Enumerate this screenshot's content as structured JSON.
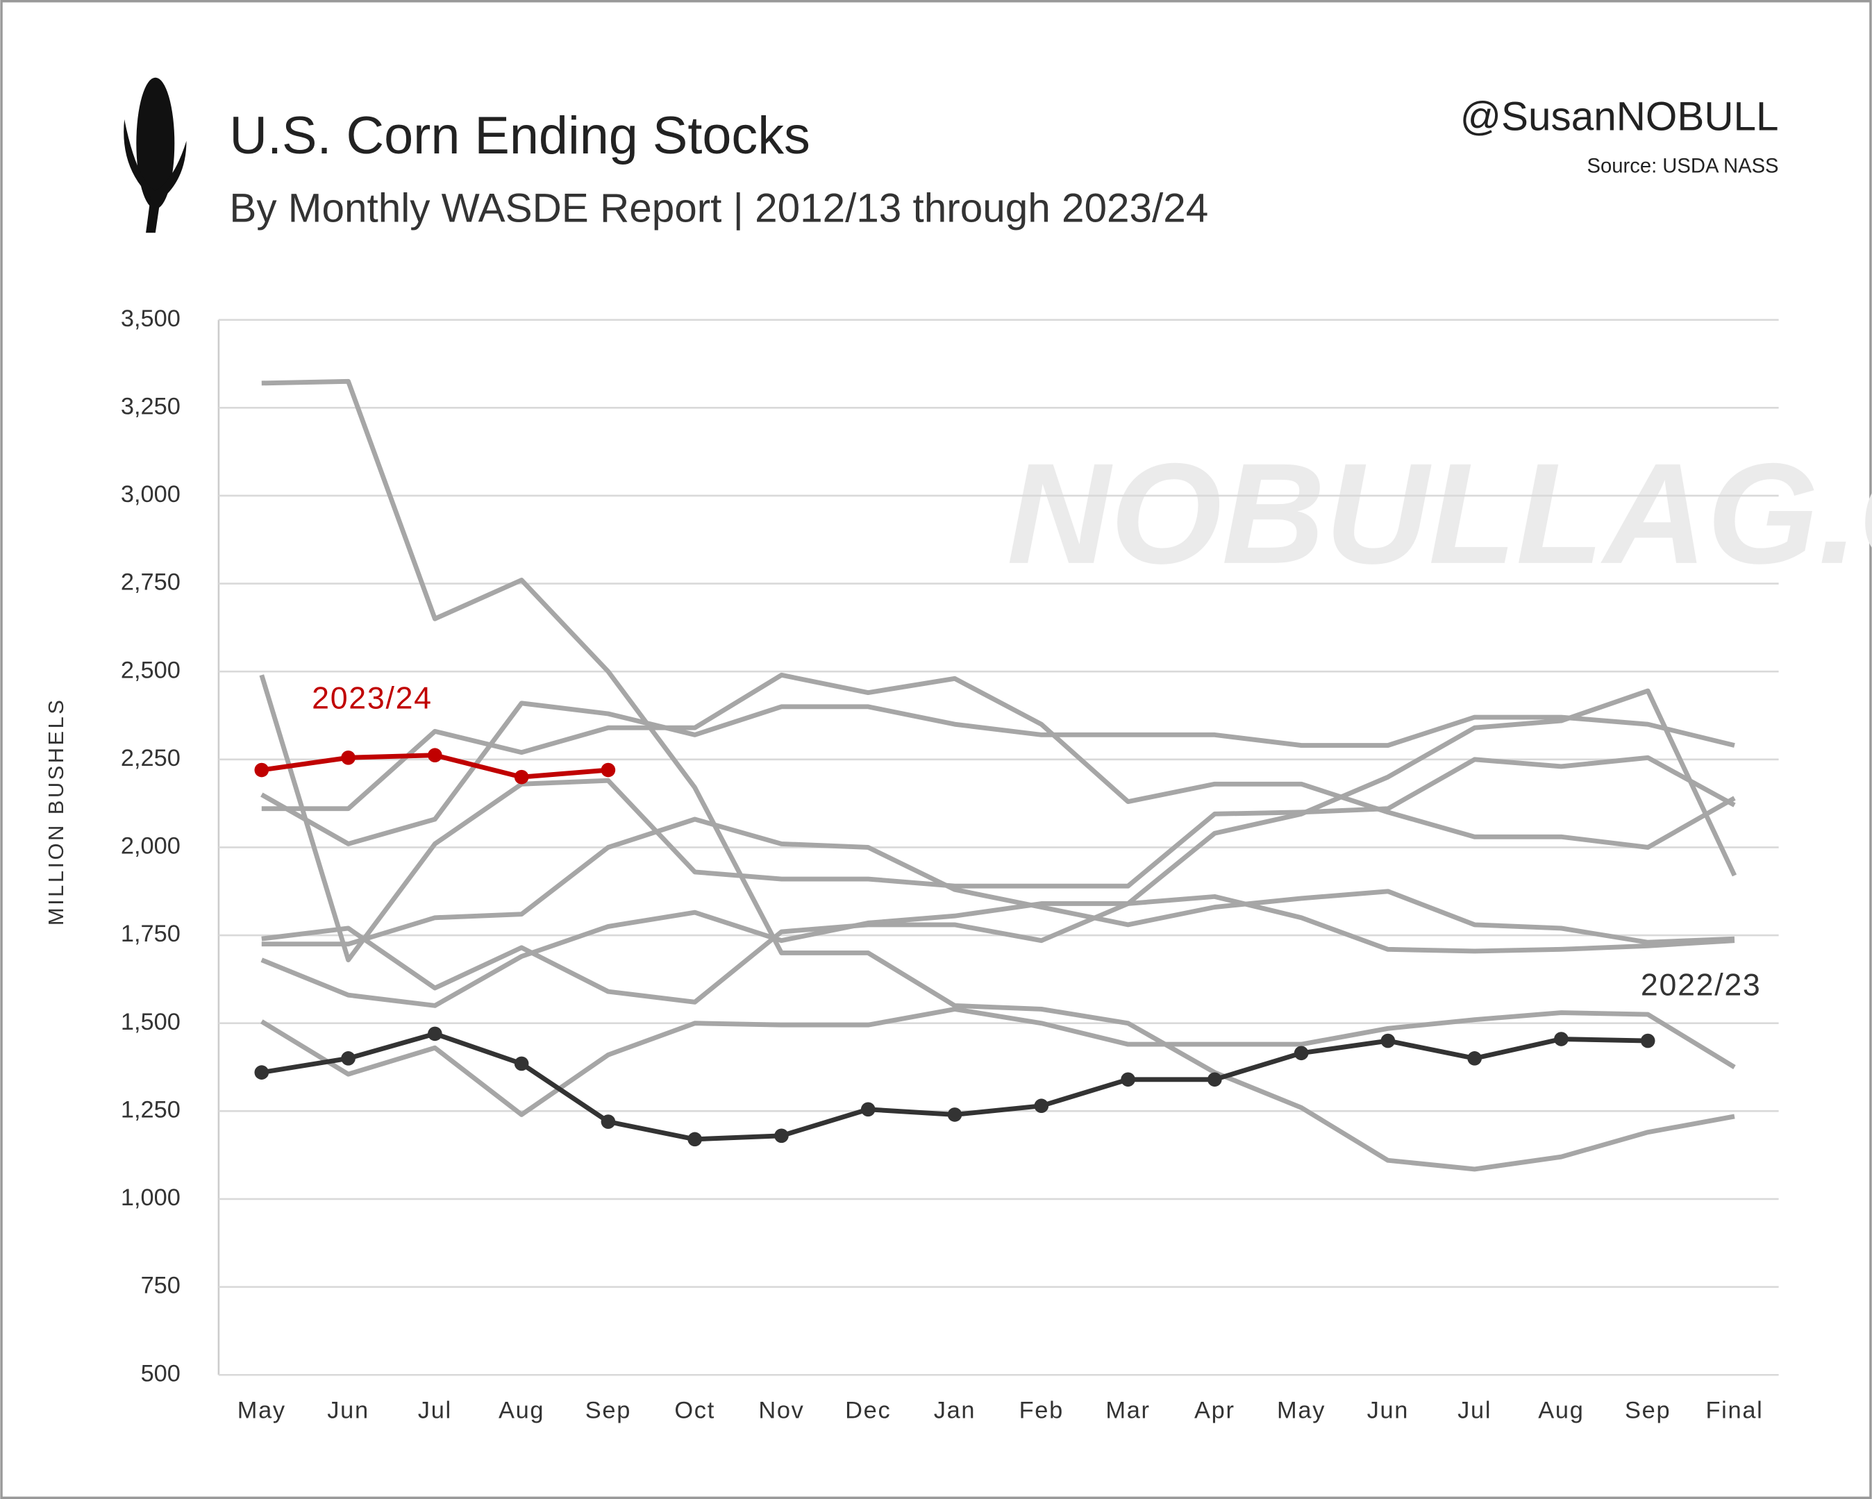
{
  "chart_data": {
    "type": "line",
    "title": "U.S. Corn Ending Stocks",
    "subtitle": "By Monthly WASDE Report | 2012/13 through 2023/24",
    "handle": "@SusanNOBULL",
    "source": "Source: USDA NASS",
    "watermark": "NOBULLAG.COM",
    "ylabel": "MILLION BUSHELS",
    "categories": [
      "May",
      "Jun",
      "Jul",
      "Aug",
      "Sep",
      "Oct",
      "Nov",
      "Dec",
      "Jan",
      "Feb",
      "Mar",
      "Apr",
      "May",
      "Jun",
      "Jul",
      "Aug",
      "Sep",
      "Final"
    ],
    "ylim": [
      500,
      3500
    ],
    "yticks": [
      500,
      750,
      {
        "value": 1000,
        "label": "1,000"
      },
      {
        "value": 1250,
        "label": "1,250"
      },
      {
        "value": 1500,
        "label": "1,500"
      },
      {
        "value": 1750,
        "label": "1,750"
      },
      {
        "value": 2000,
        "label": "2,000"
      },
      {
        "value": 2250,
        "label": "2,250"
      },
      {
        "value": 2500,
        "label": "2,500"
      },
      {
        "value": 2750,
        "label": "2,750"
      },
      {
        "value": 3000,
        "label": "3,000"
      },
      {
        "value": 3250,
        "label": "3,250"
      },
      {
        "value": 3500,
        "label": "3,500"
      }
    ],
    "grid": true,
    "series": [
      {
        "color": "#a6a6a6",
        "values": [
          3320,
          3325,
          2650,
          2760,
          2500,
          2170,
          1700,
          1700,
          1550,
          1540,
          1500,
          1360,
          1260,
          1110,
          1085,
          1120,
          1190,
          1235
        ]
      },
      {
        "color": "#a6a6a6",
        "values": [
          2490,
          1680,
          2010,
          2180,
          2190,
          1930,
          1910,
          1910,
          1890,
          1890,
          1890,
          2095,
          2100,
          2110,
          2250,
          2230,
          2255,
          2120
        ]
      },
      {
        "color": "#a6a6a6",
        "values": [
          2150,
          2010,
          2080,
          2410,
          2380,
          2320,
          2400,
          2400,
          2350,
          2320,
          2320,
          2320,
          2290,
          2290,
          2370,
          2370,
          2350,
          2290
        ]
      },
      {
        "color": "#a6a6a6",
        "values": [
          2110,
          2110,
          2330,
          2270,
          2340,
          2340,
          2490,
          2440,
          2480,
          2350,
          2130,
          2180,
          2180,
          2100,
          2030,
          2030,
          2000,
          2140
        ]
      },
      {
        "color": "#a6a6a6",
        "values": [
          1740,
          1770,
          1600,
          1715,
          1590,
          1560,
          1760,
          1780,
          1780,
          1735,
          1840,
          1860,
          1800,
          1710,
          1705,
          1710,
          1720,
          1735
        ]
      },
      {
        "color": "#a6a6a6",
        "values": [
          1725,
          1725,
          1800,
          1810,
          2000,
          2080,
          2010,
          2000,
          1880,
          1830,
          1780,
          1830,
          1855,
          1875,
          1780,
          1770,
          1730,
          1740
        ]
      },
      {
        "color": "#a6a6a6",
        "values": [
          1680,
          1580,
          1550,
          1690,
          1775,
          1815,
          1735,
          1785,
          1805,
          1840,
          1840,
          2040,
          2095,
          2200,
          2340,
          2360,
          2445,
          1920
        ]
      },
      {
        "color": "#a6a6a6",
        "values": [
          1505,
          1355,
          1430,
          1240,
          1410,
          1500,
          1495,
          1495,
          1540,
          1500,
          1440,
          1440,
          1440,
          1485,
          1510,
          1530,
          1525,
          1375
        ]
      },
      {
        "name": "2022/23",
        "color": "#333333",
        "markers": true,
        "values": [
          1360,
          1400,
          1470,
          1385,
          1220,
          1170,
          1180,
          1255,
          1240,
          1265,
          1340,
          1340,
          1415,
          1450,
          1400,
          1455,
          1450,
          null
        ]
      },
      {
        "name": "2023/24",
        "color": "#c00000",
        "markers": true,
        "values": [
          2220,
          2255,
          2262,
          2200,
          2220,
          null,
          null,
          null,
          null,
          null,
          null,
          null,
          null,
          null,
          null,
          null,
          null,
          null
        ]
      }
    ]
  }
}
